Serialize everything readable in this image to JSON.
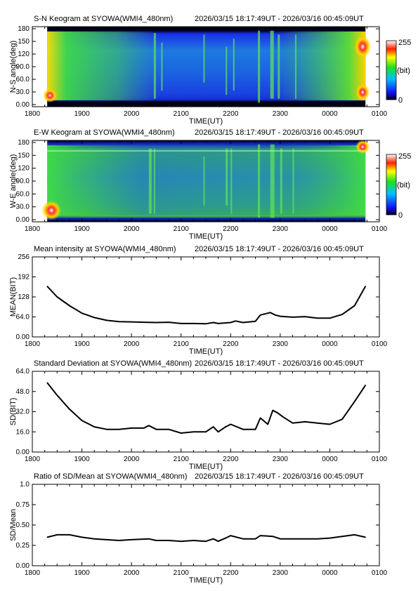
{
  "header_time_range": "2026/03/15 18:17:49UT - 2026/03/16 00:45:09UT",
  "time_tick_labels": [
    "1800",
    "1900",
    "2000",
    "2100",
    "2200",
    "2300",
    "0000",
    "0100"
  ],
  "xlabel": "TIME(UT)",
  "colorbar": {
    "max_label": "255",
    "unit_label": "(bit)",
    "min_label": "0"
  },
  "panels": [
    {
      "id": "sn-keogram",
      "title": "S-N Keogram at SYOWA(WMI4_480nm)",
      "ylabel": "N-S angle(deg)",
      "yticks": [
        "0.00",
        "30.0",
        "60.0",
        "90.0",
        "120",
        "150",
        "180"
      ]
    },
    {
      "id": "ew-keogram",
      "title": "E-W Keogram at SYOWA(WMI4_480nm)",
      "ylabel": "W-E angle(deg)",
      "yticks": [
        "0.00",
        "30.0",
        "60.0",
        "90.0",
        "120",
        "150",
        "180"
      ]
    },
    {
      "id": "mean-intensity",
      "title": "Mean intensity at SYOWA(WMI4_480nm)",
      "ylabel": "MEAN(BIT)",
      "yticks": [
        "0.00",
        "64.0",
        "128",
        "192",
        "256"
      ]
    },
    {
      "id": "standard-deviation",
      "title": "Standard Deviation at SYOWA(WMI4_480nm)",
      "ylabel": "SD(BIT)",
      "yticks": [
        "0.00",
        "16.0",
        "32.0",
        "48.0",
        "64.0"
      ]
    },
    {
      "id": "sd-mean-ratio",
      "title": "Ratio of SD/Mean at SYOWA(WMI4_480nm)",
      "ylabel": "SD/Mean",
      "yticks": [
        "0.00",
        "0.25",
        "0.50",
        "0.75",
        "1.0"
      ]
    }
  ],
  "colors": {
    "line": "#000000",
    "keogram_background": "#1a4fd8",
    "keogram_dark": "#000010"
  },
  "chart_data": [
    {
      "type": "heatmap",
      "name": "S-N keogram",
      "x_range_hours": [
        18.0,
        25.0
      ],
      "ylim": [
        0,
        180
      ],
      "colormap": "rainbow (0 black/blue - 255 white)",
      "zlim": [
        0,
        255
      ]
    },
    {
      "type": "heatmap",
      "name": "E-W keogram",
      "x_range_hours": [
        18.0,
        25.0
      ],
      "ylim": [
        0,
        180
      ],
      "colormap": "rainbow (0 black/blue - 255 white)",
      "zlim": [
        0,
        255
      ]
    },
    {
      "type": "line",
      "x_unit": "UT hour",
      "xlim": [
        18.0,
        25.0
      ],
      "ylim": [
        0,
        256
      ],
      "x": [
        18.3,
        18.5,
        18.75,
        19.0,
        19.25,
        19.5,
        19.75,
        20.0,
        20.25,
        20.5,
        20.75,
        21.0,
        21.25,
        21.5,
        21.65,
        21.75,
        22.0,
        22.1,
        22.25,
        22.5,
        22.6,
        22.8,
        22.9,
        23.0,
        23.25,
        23.5,
        23.75,
        24.0,
        24.25,
        24.5,
        24.72
      ],
      "y": [
        162,
        128,
        100,
        76,
        62,
        53,
        49,
        48,
        47,
        46,
        47,
        43,
        43,
        42,
        46,
        43,
        46,
        51,
        46,
        50,
        70,
        78,
        70,
        66,
        63,
        65,
        60,
        60,
        72,
        100,
        162
      ]
    },
    {
      "type": "line",
      "x_unit": "UT hour",
      "xlim": [
        18.0,
        25.0
      ],
      "ylim": [
        0,
        64
      ],
      "x": [
        18.3,
        18.5,
        18.75,
        19.0,
        19.25,
        19.5,
        19.75,
        20.0,
        20.25,
        20.35,
        20.5,
        20.75,
        21.0,
        21.25,
        21.5,
        21.65,
        21.75,
        21.9,
        22.0,
        22.25,
        22.5,
        22.6,
        22.75,
        22.85,
        22.95,
        23.05,
        23.25,
        23.5,
        23.75,
        24.0,
        24.25,
        24.5,
        24.72
      ],
      "y": [
        55,
        45,
        34,
        25,
        20,
        18,
        18,
        19,
        19,
        21,
        18,
        18,
        15,
        16,
        16,
        20,
        16,
        20,
        22,
        18,
        18,
        27,
        22,
        33,
        31,
        28,
        23,
        24,
        23,
        22,
        26,
        40,
        53
      ]
    },
    {
      "type": "line",
      "x_unit": "UT hour",
      "xlim": [
        18.0,
        25.0
      ],
      "ylim": [
        0,
        1.0
      ],
      "x": [
        18.3,
        18.5,
        18.75,
        19.0,
        19.25,
        19.5,
        19.75,
        20.0,
        20.35,
        20.5,
        20.75,
        21.0,
        21.25,
        21.5,
        21.65,
        21.75,
        21.9,
        22.0,
        22.25,
        22.5,
        22.6,
        22.85,
        23.0,
        23.5,
        23.75,
        24.0,
        24.25,
        24.5,
        24.72
      ],
      "y": [
        0.35,
        0.38,
        0.38,
        0.35,
        0.33,
        0.32,
        0.31,
        0.32,
        0.33,
        0.31,
        0.31,
        0.3,
        0.31,
        0.3,
        0.33,
        0.3,
        0.34,
        0.37,
        0.33,
        0.33,
        0.37,
        0.36,
        0.33,
        0.33,
        0.33,
        0.34,
        0.36,
        0.38,
        0.35
      ]
    }
  ]
}
